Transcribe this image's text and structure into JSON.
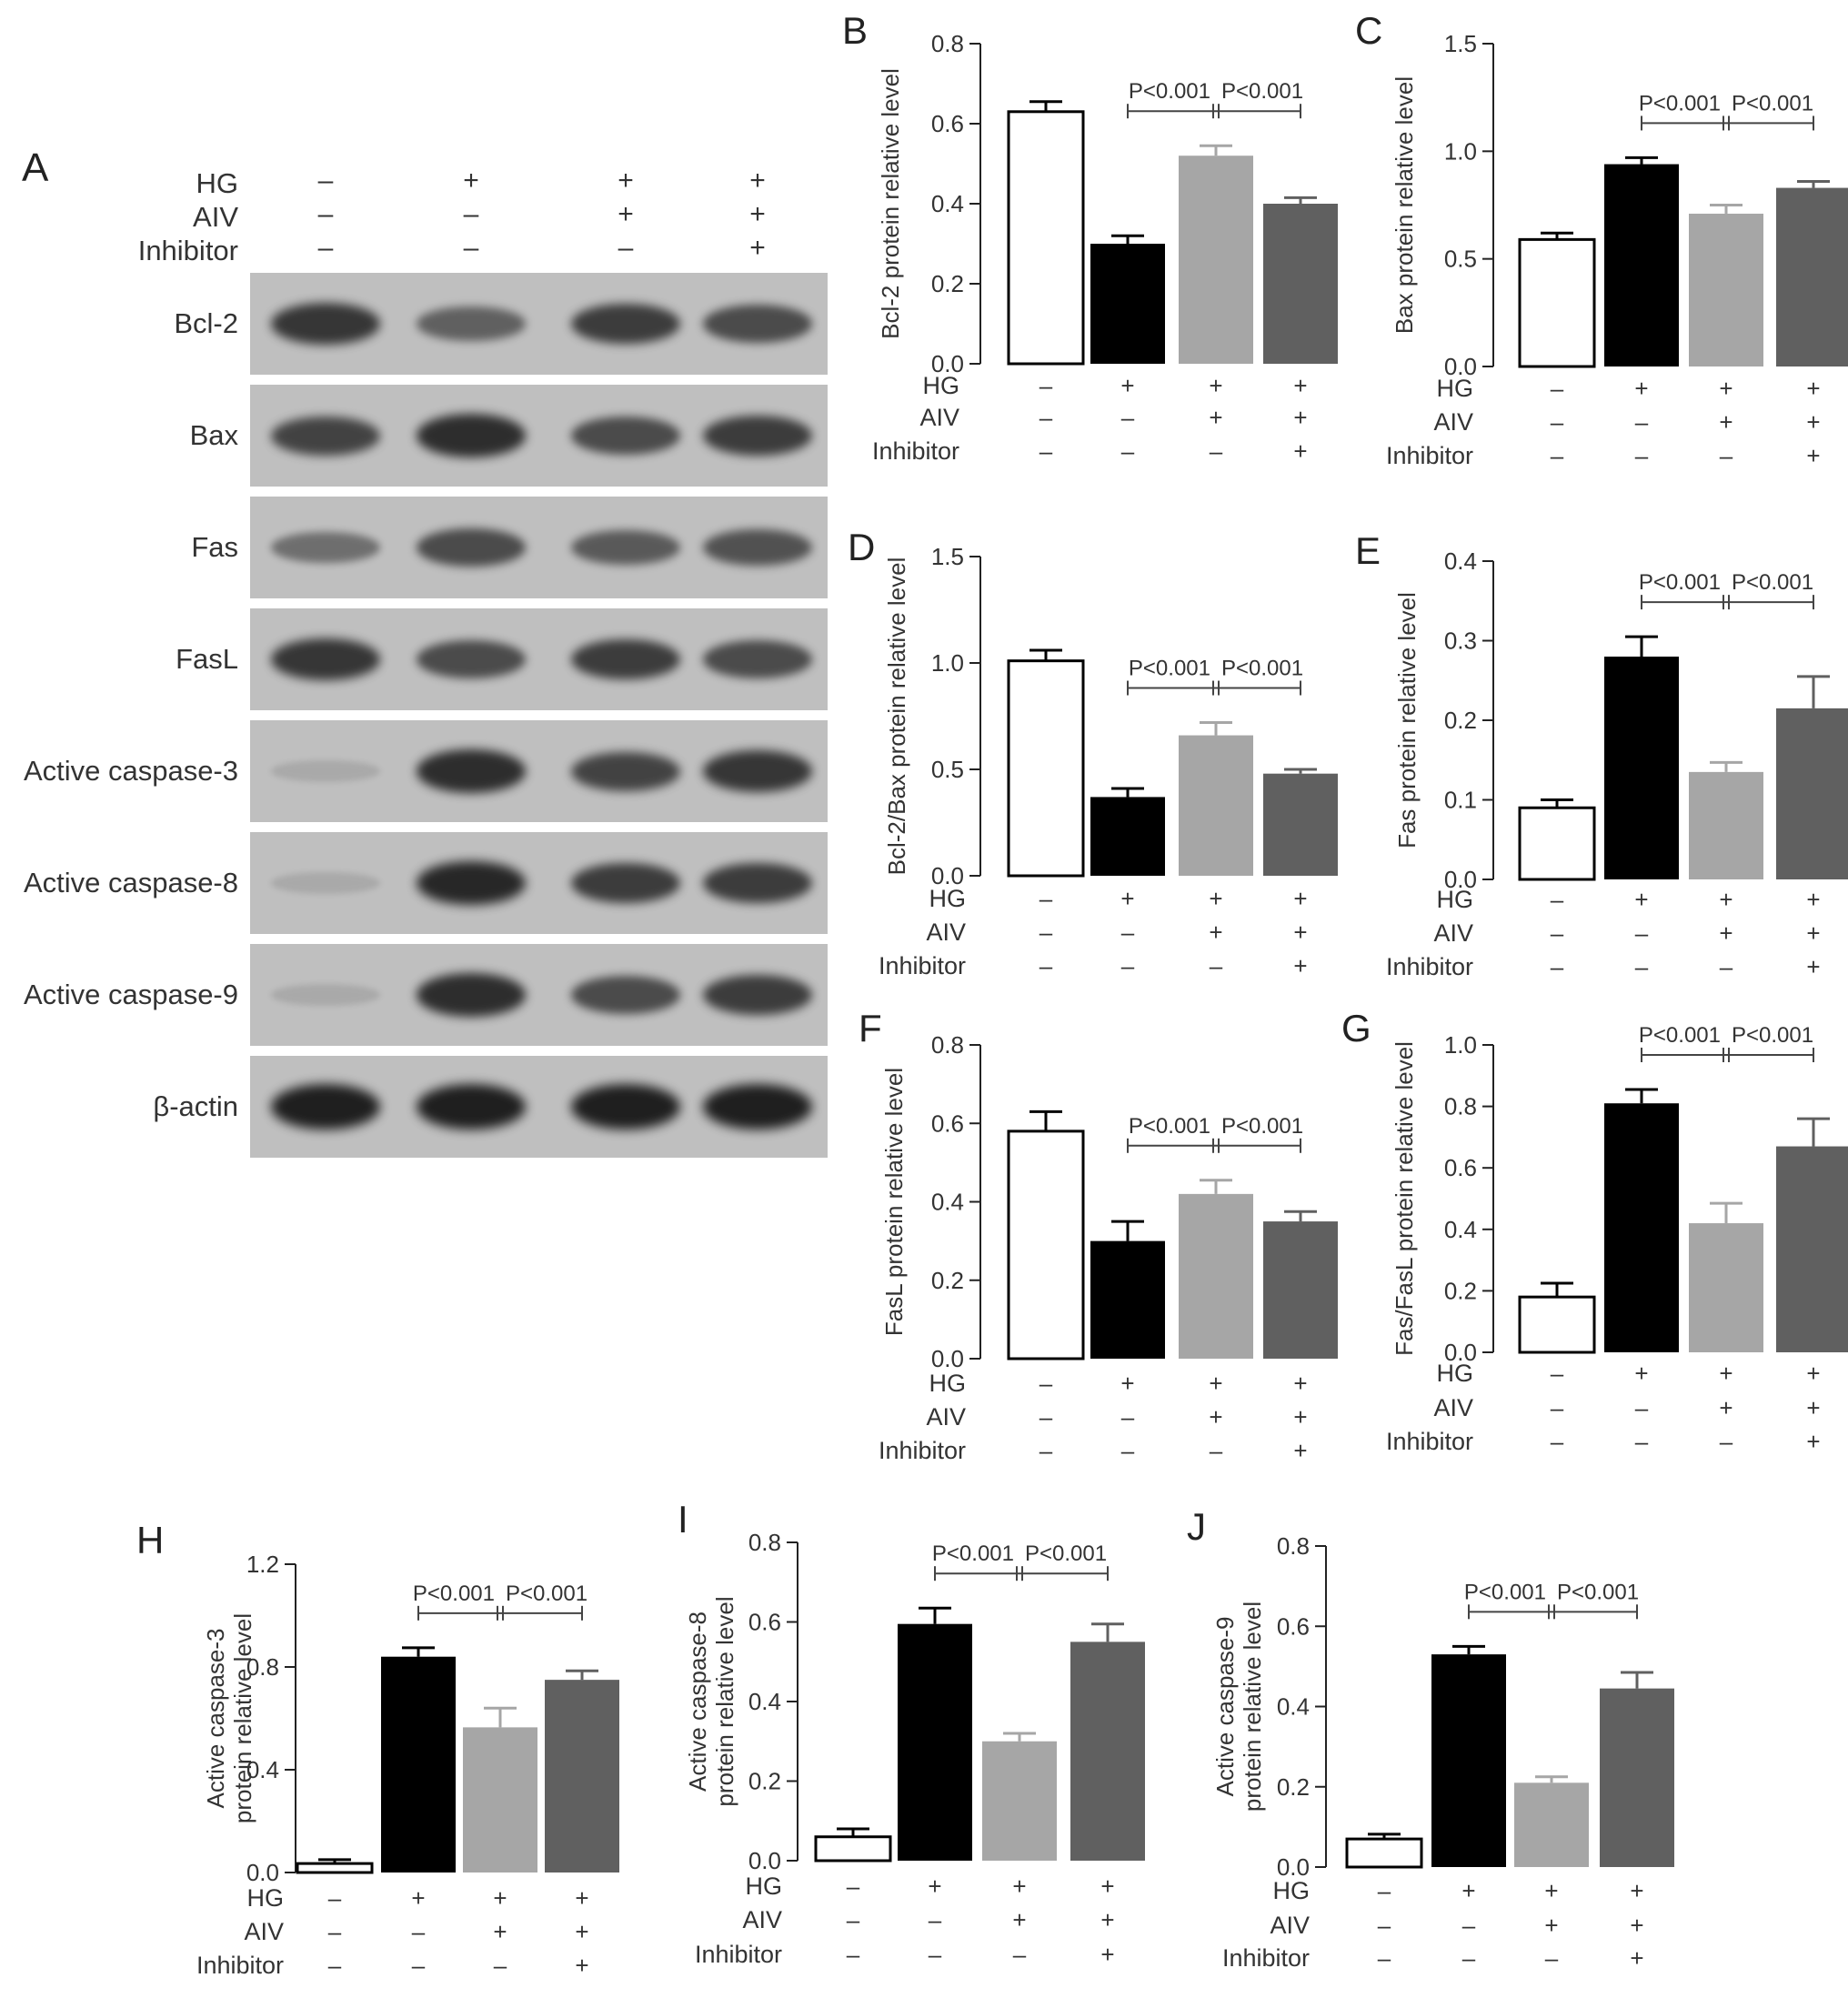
{
  "figure": {
    "panel_a": {
      "letter": "A",
      "conditions": [
        {
          "label": "HG",
          "signs": [
            "–",
            "+",
            "+",
            "+"
          ]
        },
        {
          "label": "AIV",
          "signs": [
            "–",
            "–",
            "+",
            "+"
          ]
        },
        {
          "label": "Inhibitor",
          "signs": [
            "–",
            "–",
            "–",
            "+"
          ]
        }
      ],
      "blots": [
        {
          "label": "Bcl-2",
          "intensity": [
            0.85,
            0.55,
            0.8,
            0.7
          ]
        },
        {
          "label": "Bax",
          "intensity": [
            0.75,
            0.9,
            0.7,
            0.8
          ]
        },
        {
          "label": "Fas",
          "intensity": [
            0.45,
            0.7,
            0.6,
            0.65
          ]
        },
        {
          "label": "FasL",
          "intensity": [
            0.85,
            0.7,
            0.8,
            0.7
          ]
        },
        {
          "label": "Active caspase-3",
          "intensity": [
            0.05,
            0.9,
            0.75,
            0.85
          ]
        },
        {
          "label": "Active caspase-8",
          "intensity": [
            0.05,
            0.95,
            0.8,
            0.8
          ]
        },
        {
          "label": "Active caspase-9",
          "intensity": [
            0.05,
            0.9,
            0.7,
            0.8
          ]
        },
        {
          "label": "β-actin",
          "intensity": [
            1.0,
            1.0,
            1.0,
            1.0
          ]
        }
      ]
    }
  },
  "chart_data": [
    {
      "letter": "B",
      "type": "bar",
      "ylabel": "Bcl-2 protein relative level",
      "ylim": [
        0,
        0.8
      ],
      "yticks": [
        "0.0",
        "0.2",
        "0.4",
        "0.6",
        "0.8"
      ],
      "values": [
        0.63,
        0.3,
        0.52,
        0.4
      ],
      "errors": [
        0.025,
        0.02,
        0.025,
        0.015
      ],
      "p_values": [
        "P<0.001",
        "P<0.001"
      ],
      "conditions": {
        "HG": [
          "–",
          "+",
          "+",
          "+"
        ],
        "AIV": [
          "–",
          "–",
          "+",
          "+"
        ],
        "Inhibitor": [
          "–",
          "–",
          "–",
          "+"
        ]
      }
    },
    {
      "letter": "C",
      "type": "bar",
      "ylabel": "Bax protein relative level",
      "ylim": [
        0,
        1.5
      ],
      "yticks": [
        "0.0",
        "0.5",
        "1.0",
        "1.5"
      ],
      "values": [
        0.59,
        0.94,
        0.71,
        0.83
      ],
      "errors": [
        0.03,
        0.03,
        0.04,
        0.03
      ],
      "p_values": [
        "P<0.001",
        "P<0.001"
      ],
      "conditions": {
        "HG": [
          "–",
          "+",
          "+",
          "+"
        ],
        "AIV": [
          "–",
          "–",
          "+",
          "+"
        ],
        "Inhibitor": [
          "–",
          "–",
          "–",
          "+"
        ]
      }
    },
    {
      "letter": "D",
      "type": "bar",
      "ylabel": "Bcl-2/Bax protein relative level",
      "ylim": [
        0,
        1.5
      ],
      "yticks": [
        "0.0",
        "0.5",
        "1.0",
        "1.5"
      ],
      "values": [
        1.01,
        0.37,
        0.66,
        0.48
      ],
      "errors": [
        0.05,
        0.04,
        0.06,
        0.02
      ],
      "p_values": [
        "P<0.001",
        "P<0.001"
      ],
      "conditions": {
        "HG": [
          "–",
          "+",
          "+",
          "+"
        ],
        "AIV": [
          "–",
          "–",
          "+",
          "+"
        ],
        "Inhibitor": [
          "–",
          "–",
          "–",
          "+"
        ]
      }
    },
    {
      "letter": "E",
      "type": "bar",
      "ylabel": "Fas protein relative level",
      "ylim": [
        0,
        0.4
      ],
      "yticks": [
        "0.0",
        "0.1",
        "0.2",
        "0.3",
        "0.4"
      ],
      "values": [
        0.09,
        0.28,
        0.135,
        0.215
      ],
      "errors": [
        0.01,
        0.025,
        0.012,
        0.04
      ],
      "p_values": [
        "P<0.001",
        "P<0.001"
      ],
      "conditions": {
        "HG": [
          "–",
          "+",
          "+",
          "+"
        ],
        "AIV": [
          "–",
          "–",
          "+",
          "+"
        ],
        "Inhibitor": [
          "–",
          "–",
          "–",
          "+"
        ]
      }
    },
    {
      "letter": "F",
      "type": "bar",
      "ylabel": "FasL protein relative level",
      "ylim": [
        0,
        0.8
      ],
      "yticks": [
        "0.0",
        "0.2",
        "0.4",
        "0.6",
        "0.8"
      ],
      "values": [
        0.58,
        0.3,
        0.42,
        0.35
      ],
      "errors": [
        0.05,
        0.05,
        0.035,
        0.025
      ],
      "p_values": [
        "P<0.001",
        "P<0.001"
      ],
      "conditions": {
        "HG": [
          "–",
          "+",
          "+",
          "+"
        ],
        "AIV": [
          "–",
          "–",
          "+",
          "+"
        ],
        "Inhibitor": [
          "–",
          "–",
          "–",
          "+"
        ]
      }
    },
    {
      "letter": "G",
      "type": "bar",
      "ylabel": "Fas/FasL protein relative level",
      "ylim": [
        0,
        1.0
      ],
      "yticks": [
        "0.0",
        "0.2",
        "0.4",
        "0.6",
        "0.8",
        "1.0"
      ],
      "values": [
        0.18,
        0.81,
        0.42,
        0.67
      ],
      "errors": [
        0.045,
        0.045,
        0.065,
        0.09
      ],
      "p_values": [
        "P<0.001",
        "P<0.001"
      ],
      "conditions": {
        "HG": [
          "–",
          "+",
          "+",
          "+"
        ],
        "AIV": [
          "–",
          "–",
          "+",
          "+"
        ],
        "Inhibitor": [
          "–",
          "–",
          "–",
          "+"
        ]
      }
    },
    {
      "letter": "H",
      "type": "bar",
      "ylabel": [
        "Active caspase-3",
        "protein relative level"
      ],
      "ylim": [
        0,
        1.2
      ],
      "yticks": [
        "0.0",
        "0.4",
        "0.8",
        "1.2"
      ],
      "values": [
        0.035,
        0.84,
        0.565,
        0.75
      ],
      "errors": [
        0.015,
        0.035,
        0.075,
        0.035
      ],
      "p_values": [
        "P<0.001",
        "P<0.001"
      ],
      "conditions": {
        "HG": [
          "–",
          "+",
          "+",
          "+"
        ],
        "AIV": [
          "–",
          "–",
          "+",
          "+"
        ],
        "Inhibitor": [
          "–",
          "–",
          "–",
          "+"
        ]
      }
    },
    {
      "letter": "I",
      "type": "bar",
      "ylabel": [
        "Active caspase-8",
        "protein relative level"
      ],
      "ylim": [
        0,
        0.8
      ],
      "yticks": [
        "0.0",
        "0.2",
        "0.4",
        "0.6",
        "0.8"
      ],
      "values": [
        0.06,
        0.595,
        0.3,
        0.55
      ],
      "errors": [
        0.02,
        0.04,
        0.02,
        0.045
      ],
      "p_values": [
        "P<0.001",
        "P<0.001"
      ],
      "conditions": {
        "HG": [
          "–",
          "+",
          "+",
          "+"
        ],
        "AIV": [
          "–",
          "–",
          "+",
          "+"
        ],
        "Inhibitor": [
          "–",
          "–",
          "–",
          "+"
        ]
      }
    },
    {
      "letter": "J",
      "type": "bar",
      "ylabel": [
        "Active caspase-9",
        "protein relative level"
      ],
      "ylim": [
        0,
        0.8
      ],
      "yticks": [
        "0.0",
        "0.2",
        "0.4",
        "0.6",
        "0.8"
      ],
      "values": [
        0.07,
        0.53,
        0.21,
        0.445
      ],
      "errors": [
        0.012,
        0.02,
        0.015,
        0.04
      ],
      "p_values": [
        "P<0.001",
        "P<0.001"
      ],
      "conditions": {
        "HG": [
          "–",
          "+",
          "+",
          "+"
        ],
        "AIV": [
          "–",
          "–",
          "+",
          "+"
        ],
        "Inhibitor": [
          "–",
          "–",
          "–",
          "+"
        ]
      }
    }
  ],
  "colors": {
    "bar_fills": [
      "#ffffff",
      "#000000",
      "#a6a6a6",
      "#606060"
    ],
    "bar_stroke": "#000000",
    "axis": "#222222",
    "text": "#333333",
    "blot_background": "#bfbfbf",
    "band": "#1c1c1c"
  }
}
